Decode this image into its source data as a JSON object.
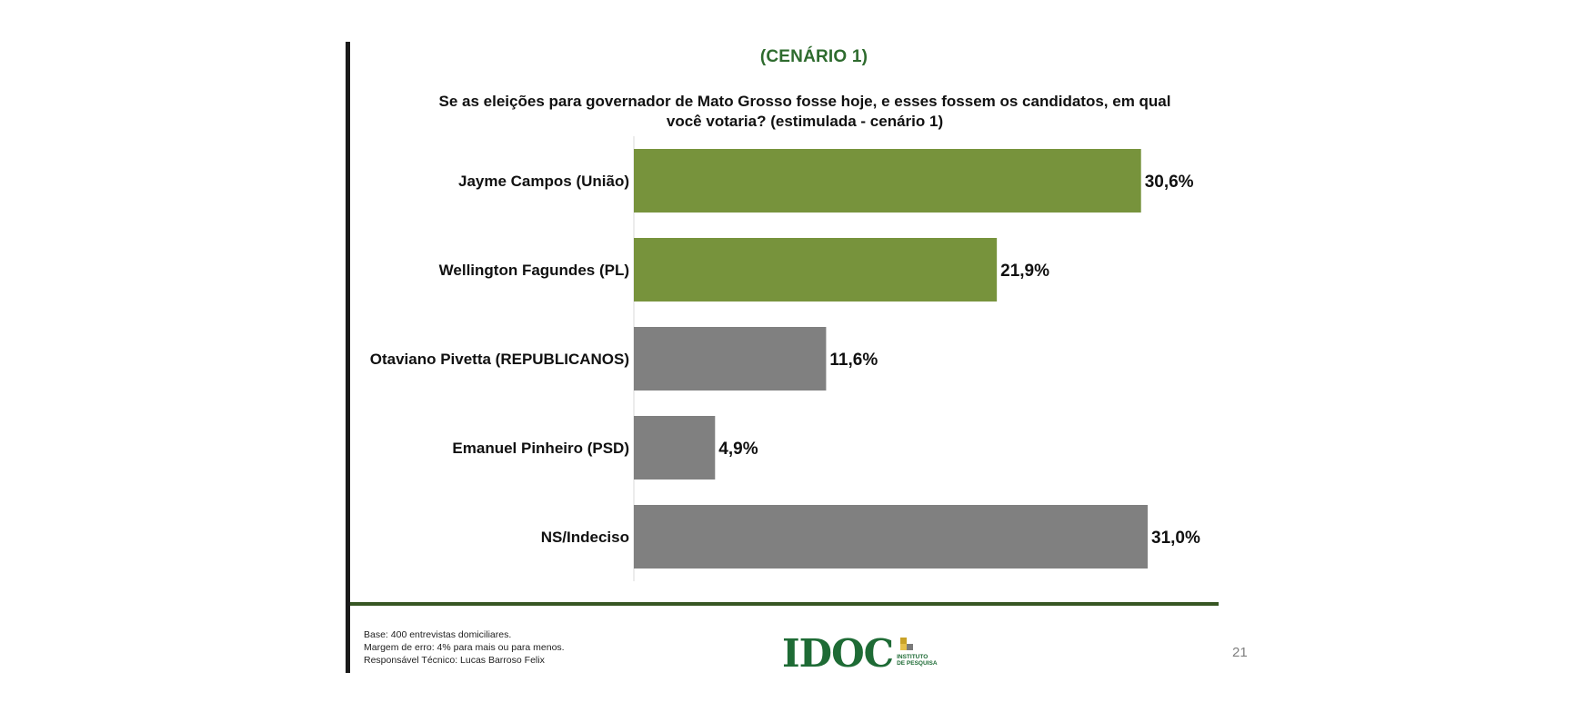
{
  "slide": {
    "scenario_title": "(CENÁRIO 1)",
    "page_number": "21"
  },
  "chart_data": {
    "type": "bar",
    "orientation": "horizontal",
    "title": "Se as eleições para governador de Mato Grosso fosse hoje, e esses fossem os candidatos, em qual você votaria? (estimulada - cenário 1)",
    "categories": [
      "Jayme Campos (União)",
      "Wellington Fagundes (PL)",
      "Otaviano Pivetta (REPUBLICANOS)",
      "Emanuel Pinheiro (PSD)",
      "NS/Indeciso"
    ],
    "values": [
      30.6,
      21.9,
      11.6,
      4.9,
      31.0
    ],
    "value_labels": [
      "30,6%",
      "21,9%",
      "11,6%",
      "4,9%",
      "31,0%"
    ],
    "bar_colors": [
      "#77933c",
      "#77933c",
      "#808080",
      "#808080",
      "#808080"
    ],
    "unit": "%",
    "xlim": [
      0,
      31.0
    ],
    "grid": false,
    "legend": "none"
  },
  "footer": {
    "notes": [
      "Base: 400 entrevistas domiciliares.",
      "Margem de erro: 4% para mais ou para menos.",
      "Responsável Técnico: Lucas Barroso Felix"
    ],
    "logo": {
      "wordmark": "IDOC",
      "subtitle_line1": "INSTITUTO",
      "subtitle_line2": "DE PESQUISA",
      "color": "#1e6b35"
    }
  }
}
